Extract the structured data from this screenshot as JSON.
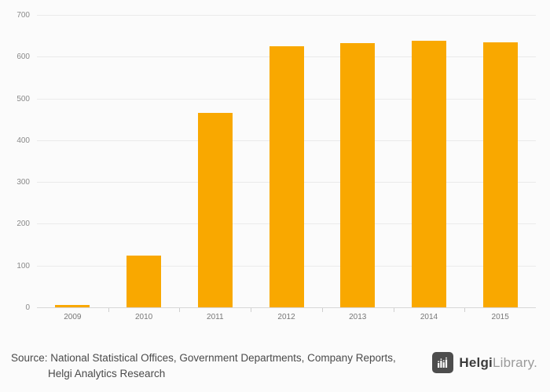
{
  "chart_data": {
    "type": "bar",
    "categories": [
      "2009",
      "2010",
      "2011",
      "2012",
      "2013",
      "2014",
      "2015"
    ],
    "values": [
      8,
      125,
      468,
      627,
      635,
      640,
      637
    ],
    "title": "",
    "xlabel": "",
    "ylabel": "",
    "ylim": [
      0,
      700
    ],
    "yticks": [
      0,
      100,
      200,
      300,
      400,
      500,
      600,
      700
    ],
    "grid": true,
    "legend": "none",
    "bar_color": "#F9A800"
  },
  "colors": {
    "bar": "#F9A800",
    "gridline": "#eaeaea",
    "axis_text": "#8a8a8a",
    "background": "#fbfbfb",
    "logo_square": "#4d4d4d"
  },
  "footer": {
    "source_line1": "Source: National Statistical Offices, Government Departments, Company Reports,",
    "source_line2": "Helgi Analytics Research",
    "logo_bold": "Helgi",
    "logo_light": "Library."
  }
}
